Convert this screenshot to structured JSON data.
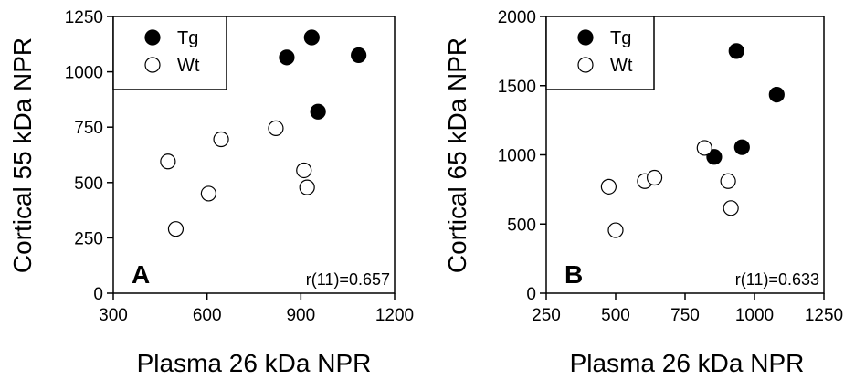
{
  "chart_data": [
    {
      "type": "scatter",
      "panel_label": "A",
      "xlabel": "Plasma 26 kDa NPR",
      "ylabel": "Cortical 55 kDa NPR",
      "xlim": [
        300,
        1200
      ],
      "ylim": [
        0,
        1250
      ],
      "xticks": [
        300,
        600,
        900,
        1200
      ],
      "yticks": [
        0,
        250,
        500,
        750,
        1000,
        1250
      ],
      "annotation": "r(11)=0.657",
      "legend_position": "top-left",
      "grid": false,
      "series": [
        {
          "name": "Tg",
          "marker": "filled-circle",
          "color": "#000000",
          "points": [
            [
              855,
              1065
            ],
            [
              935,
              1155
            ],
            [
              955,
              820
            ],
            [
              1085,
              1075
            ]
          ]
        },
        {
          "name": "Wt",
          "marker": "open-circle",
          "color": "#000000",
          "points": [
            [
              475,
              595
            ],
            [
              500,
              290
            ],
            [
              605,
              450
            ],
            [
              645,
              695
            ],
            [
              820,
              745
            ],
            [
              910,
              555
            ],
            [
              920,
              478
            ]
          ]
        }
      ]
    },
    {
      "type": "scatter",
      "panel_label": "B",
      "xlabel": "Plasma 26 kDa NPR",
      "ylabel": "Cortical 65 kDa NPR",
      "xlim": [
        250,
        1250
      ],
      "ylim": [
        0,
        2000
      ],
      "xticks": [
        250,
        500,
        750,
        1000,
        1250
      ],
      "yticks": [
        0,
        500,
        1000,
        1500,
        2000
      ],
      "annotation": "r(11)=0.633",
      "legend_position": "top-left",
      "grid": false,
      "series": [
        {
          "name": "Tg",
          "marker": "filled-circle",
          "color": "#000000",
          "points": [
            [
              855,
              985
            ],
            [
              935,
              1750
            ],
            [
              955,
              1055
            ],
            [
              1080,
              1435
            ]
          ]
        },
        {
          "name": "Wt",
          "marker": "open-circle",
          "color": "#000000",
          "points": [
            [
              475,
              770
            ],
            [
              500,
              455
            ],
            [
              605,
              810
            ],
            [
              640,
              835
            ],
            [
              820,
              1050
            ],
            [
              905,
              810
            ],
            [
              915,
              615
            ]
          ]
        }
      ]
    }
  ]
}
